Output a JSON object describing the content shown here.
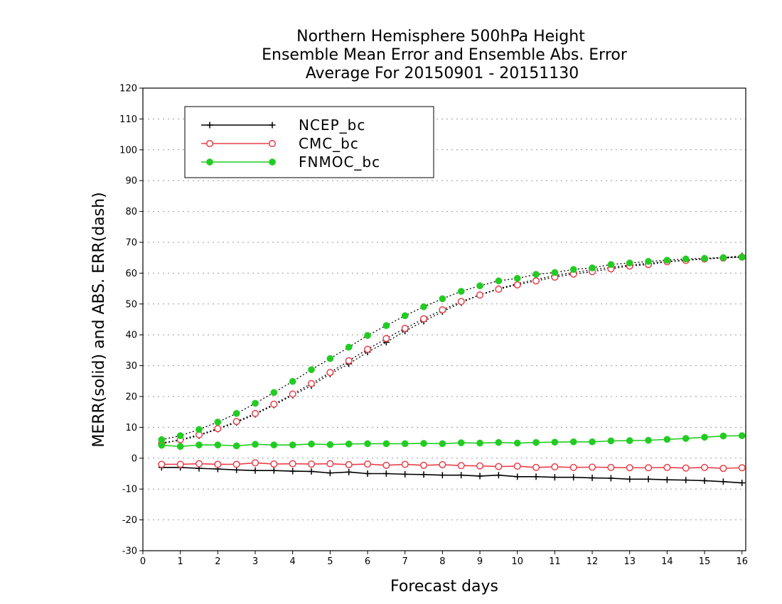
{
  "chart_data": {
    "type": "line",
    "title": [
      "Northern Hemisphere 500hPa Height",
      "Ensemble Mean Error and Ensemble Abs. Error",
      "Average For 20150901 - 20151130"
    ],
    "xlabel": "Forecast days",
    "ylabel": "MERR(solid) and ABS. ERR(dash)",
    "xlim": [
      0,
      16.1
    ],
    "ylim": [
      -30,
      120
    ],
    "xticks": [
      0,
      1,
      2,
      3,
      4,
      5,
      6,
      7,
      8,
      9,
      10,
      11,
      12,
      13,
      14,
      15,
      16
    ],
    "yticks": [
      -30,
      -20,
      -10,
      0,
      10,
      20,
      30,
      40,
      50,
      60,
      70,
      80,
      90,
      100,
      110,
      120
    ],
    "grid": true,
    "legend_position": "top-left",
    "x": [
      0.5,
      1,
      1.5,
      2,
      2.5,
      3,
      3.5,
      4,
      4.5,
      5,
      5.5,
      6,
      6.5,
      7,
      7.5,
      8,
      8.5,
      9,
      9.5,
      10,
      10.5,
      11,
      11.5,
      12,
      12.5,
      13,
      13.5,
      14,
      14.5,
      15,
      15.5,
      16
    ],
    "series": [
      {
        "name": "NCEP_bc",
        "color": "#000000",
        "marker": "plus",
        "merr": [
          -3,
          -3,
          -3.3,
          -3.5,
          -3.8,
          -4,
          -4,
          -4.2,
          -4.3,
          -4.8,
          -4.5,
          -5,
          -5,
          -5.2,
          -5.3,
          -5.5,
          -5.5,
          -5.8,
          -5.5,
          -6,
          -6,
          -6.2,
          -6.2,
          -6.4,
          -6.5,
          -6.8,
          -6.8,
          -7,
          -7.1,
          -7.3,
          -7.6,
          -8
        ],
        "abserr": [
          5,
          5.8,
          7.3,
          9.4,
          11.6,
          14.2,
          17.2,
          20.4,
          23.5,
          27.3,
          30.6,
          34.4,
          37.6,
          41.2,
          44.4,
          47.5,
          50.4,
          53,
          55,
          56.6,
          58,
          59.2,
          60.2,
          61.1,
          61.9,
          62.6,
          63.2,
          63.8,
          64.2,
          64.7,
          65.1,
          65.6
        ]
      },
      {
        "name": "CMC_bc",
        "color": "#e8404a",
        "marker": "open-circle",
        "merr": [
          -2,
          -2,
          -1.8,
          -2,
          -2,
          -1.5,
          -1.9,
          -1.8,
          -1.9,
          -1.8,
          -2.1,
          -1.9,
          -2.3,
          -2,
          -2.3,
          -2.1,
          -2.4,
          -2.5,
          -2.7,
          -2.6,
          -3,
          -2.8,
          -3,
          -2.9,
          -3,
          -3.1,
          -3.1,
          -3,
          -3.2,
          -3,
          -3.3,
          -3.1
        ],
        "abserr": [
          4.7,
          6,
          7.6,
          9.6,
          11.9,
          14.5,
          17.5,
          20.8,
          24.2,
          27.8,
          31.6,
          35.3,
          38.8,
          42.1,
          45.2,
          48.1,
          50.8,
          52.9,
          54.8,
          56.2,
          57.5,
          58.7,
          59.7,
          60.5,
          61.4,
          62.3,
          62.8,
          63.7,
          64.1,
          64.6,
          64.9,
          65.2
        ]
      },
      {
        "name": "FNMOC_bc",
        "color": "#22cc22",
        "marker": "filled-circle",
        "merr": [
          4.2,
          3.8,
          4.3,
          4.3,
          4,
          4.5,
          4.3,
          4.3,
          4.6,
          4.4,
          4.6,
          4.7,
          4.7,
          4.7,
          4.8,
          4.7,
          5,
          4.9,
          5.1,
          4.9,
          5.1,
          5.2,
          5.3,
          5.3,
          5.6,
          5.7,
          5.8,
          6.1,
          6.4,
          6.8,
          7.2,
          7.3
        ],
        "abserr": [
          6,
          7.3,
          9.3,
          11.7,
          14.5,
          17.8,
          21.3,
          24.9,
          28.7,
          32.3,
          36,
          39.8,
          43,
          46.2,
          49.1,
          51.7,
          54.1,
          55.9,
          57.5,
          58.3,
          59.6,
          60.2,
          61.2,
          61.7,
          62.8,
          63.3,
          63.8,
          64.2,
          64.6,
          64.8,
          65,
          65.2
        ]
      }
    ]
  }
}
